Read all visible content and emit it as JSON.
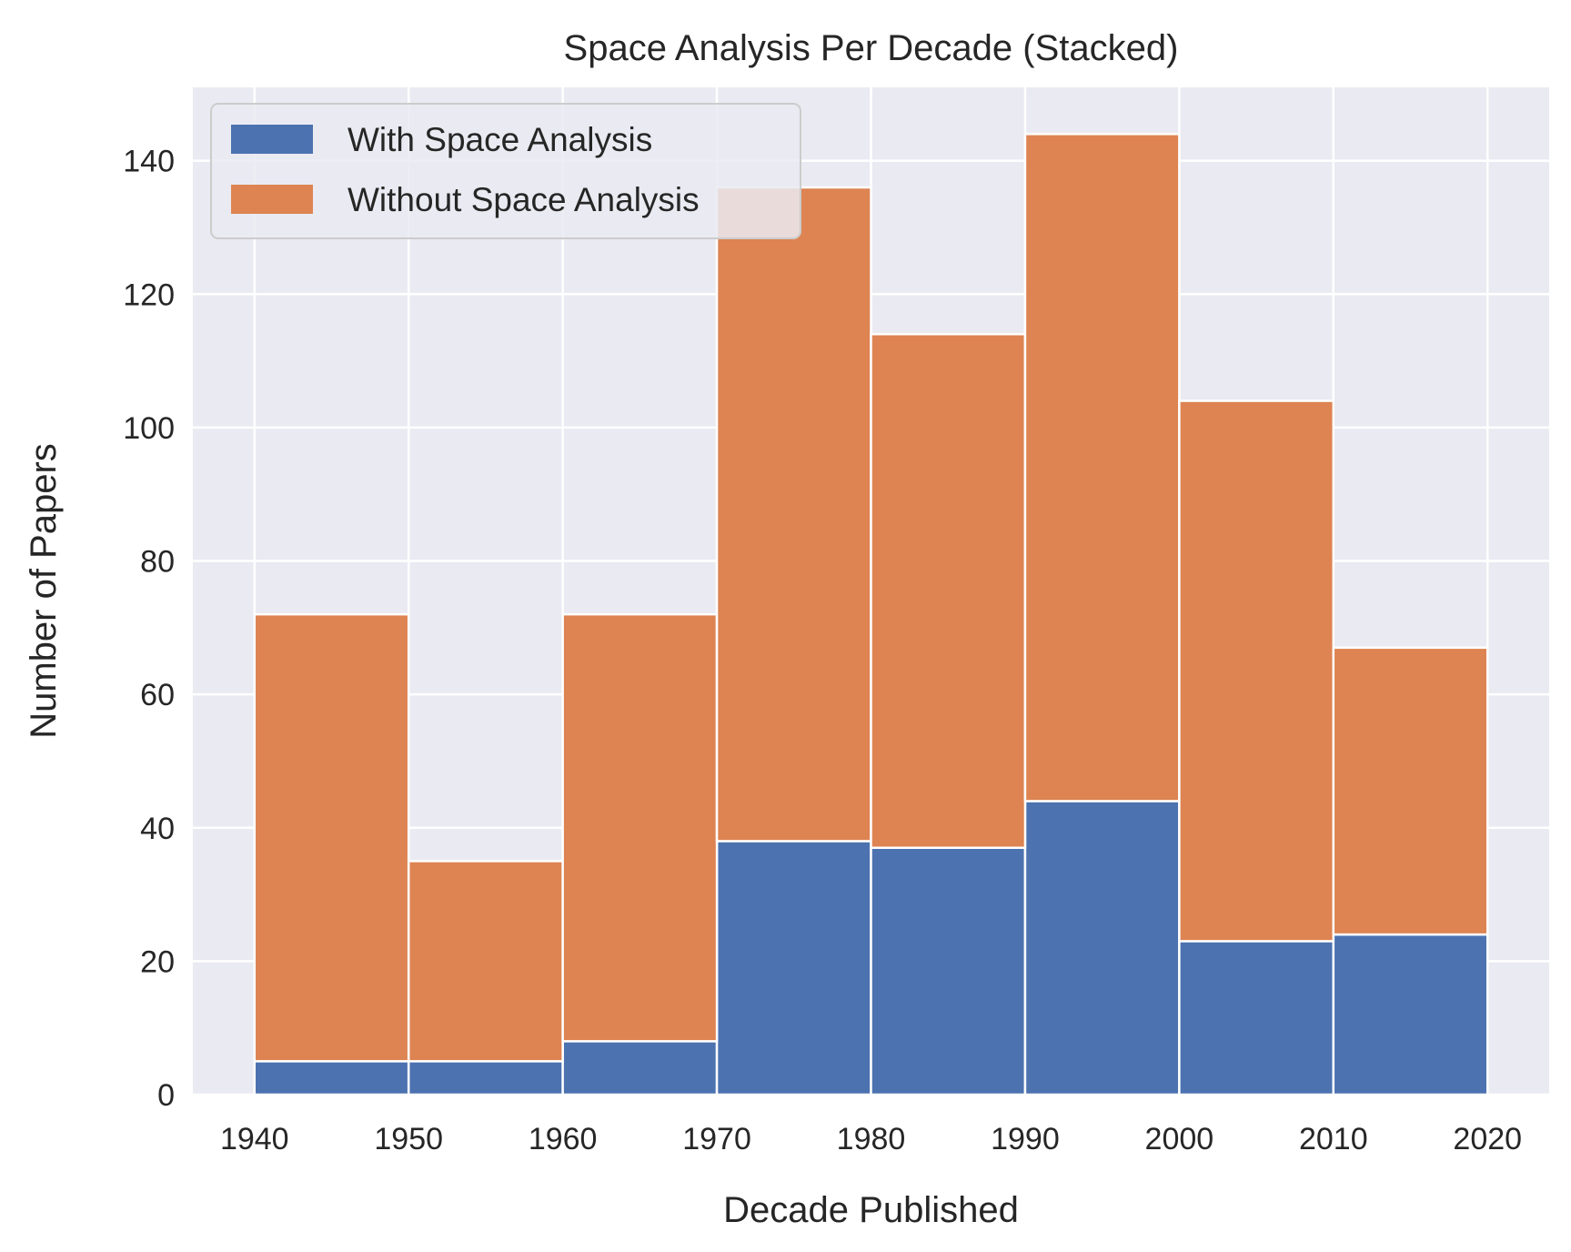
{
  "chart_data": {
    "type": "bar",
    "stacked": true,
    "title": "Space Analysis Per Decade (Stacked)",
    "xlabel": "Decade Published",
    "ylabel": "Number of Papers",
    "x_bins": [
      1940,
      1950,
      1960,
      1970,
      1980,
      1990,
      2000,
      2010,
      2020
    ],
    "x_ticks": [
      "1940",
      "1950",
      "1960",
      "1970",
      "1980",
      "1990",
      "2000",
      "2010",
      "2020"
    ],
    "xlim": [
      1936,
      2024
    ],
    "y_ticks": [
      "0",
      "20",
      "40",
      "60",
      "80",
      "100",
      "120",
      "140"
    ],
    "ylim": [
      0,
      151
    ],
    "grid": true,
    "legend_position": "top-left",
    "series": [
      {
        "name": "With Space Analysis",
        "color": "#4c72b0",
        "values": [
          5,
          5,
          8,
          38,
          37,
          44,
          23,
          24
        ]
      },
      {
        "name": "Without Space Analysis",
        "color": "#dd8452",
        "values": [
          67,
          30,
          64,
          98,
          77,
          100,
          81,
          43
        ]
      }
    ],
    "background_color": "#eaeaf2"
  }
}
